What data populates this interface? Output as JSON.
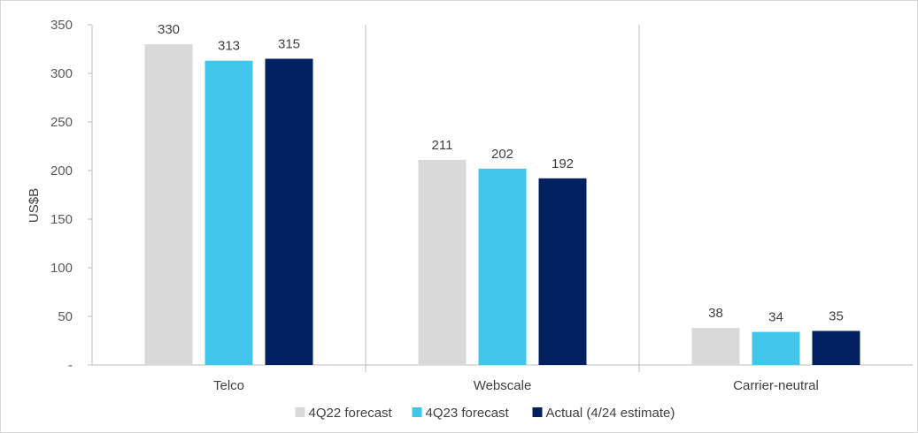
{
  "chart_data": {
    "type": "bar",
    "ylabel": "US$B",
    "ylim": [
      0,
      350
    ],
    "yticks": [
      {
        "value": 0,
        "label": "-"
      },
      {
        "value": 50,
        "label": "50"
      },
      {
        "value": 100,
        "label": "100"
      },
      {
        "value": 150,
        "label": "150"
      },
      {
        "value": 200,
        "label": "200"
      },
      {
        "value": 250,
        "label": "250"
      },
      {
        "value": 300,
        "label": "300"
      },
      {
        "value": 350,
        "label": "350"
      }
    ],
    "categories": [
      "Telco",
      "Webscale",
      "Carrier-neutral"
    ],
    "series": [
      {
        "name": "4Q22 forecast",
        "color": "#d9d9d9",
        "values": [
          330,
          211,
          38
        ]
      },
      {
        "name": "4Q23 forecast",
        "color": "#41c5eb",
        "values": [
          313,
          202,
          34
        ]
      },
      {
        "name": "Actual (4/24 estimate)",
        "color": "#002060",
        "values": [
          315,
          192,
          35
        ]
      }
    ],
    "legend": "bottom",
    "grid": false
  }
}
